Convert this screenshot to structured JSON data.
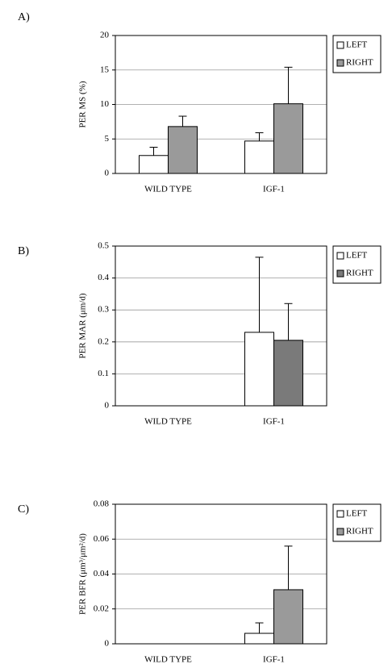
{
  "chart_data": [
    {
      "type": "bar",
      "panel": "A)",
      "y_label": "PER MS (%)",
      "categories": [
        "WILD TYPE",
        "IGF-1"
      ],
      "series": [
        {
          "name": "LEFT",
          "color": "#ffffff",
          "values": [
            2.6,
            4.7
          ],
          "errors": [
            1.2,
            1.2
          ]
        },
        {
          "name": "RIGHT",
          "color": "#9a9a9a",
          "values": [
            6.8,
            10.1
          ],
          "errors": [
            1.5,
            5.3
          ]
        }
      ],
      "ylim": [
        0,
        20
      ],
      "yticks": [
        0,
        5,
        10,
        15,
        20
      ],
      "grid": true
    },
    {
      "type": "bar",
      "panel": "B)",
      "y_label": "PER MAR (μm/d)",
      "categories": [
        "WILD TYPE",
        "IGF-1"
      ],
      "series": [
        {
          "name": "LEFT",
          "color": "#ffffff",
          "values": [
            null,
            0.23
          ],
          "errors": [
            null,
            0.235
          ]
        },
        {
          "name": "RIGHT",
          "color": "#7a7a7a",
          "values": [
            null,
            0.205
          ],
          "errors": [
            null,
            0.115
          ]
        }
      ],
      "ylim": [
        0,
        0.5
      ],
      "yticks": [
        0,
        0.1,
        0.2,
        0.3,
        0.4,
        0.5
      ],
      "grid": true
    },
    {
      "type": "bar",
      "panel": "C)",
      "y_label": "PER BFR (μm³/μm²/d)",
      "categories": [
        "WILD TYPE",
        "IGF-1"
      ],
      "series": [
        {
          "name": "LEFT",
          "color": "#ffffff",
          "values": [
            null,
            0.006
          ],
          "errors": [
            null,
            0.006
          ]
        },
        {
          "name": "RIGHT",
          "color": "#9a9a9a",
          "values": [
            null,
            0.031
          ],
          "errors": [
            null,
            0.025
          ]
        }
      ],
      "ylim": [
        0,
        0.08
      ],
      "yticks": [
        0,
        0.02,
        0.04,
        0.06,
        0.08
      ],
      "grid": true
    }
  ]
}
